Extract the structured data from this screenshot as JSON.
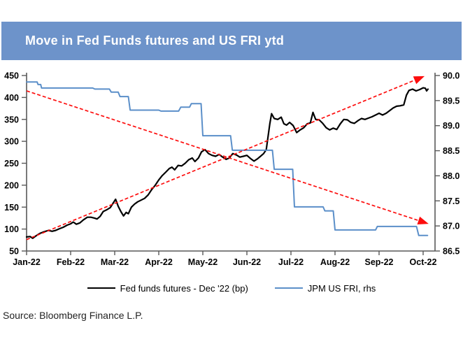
{
  "header": {
    "title": "Move in Fed Funds futures and US FRI ytd"
  },
  "source": {
    "text": "Source: Bloomberg Finance L.P."
  },
  "colors": {
    "header_bg": "#6d93ca",
    "header_text": "#ffffff",
    "fed_line": "#000000",
    "fri_line": "#5b8fc9",
    "trend_line": "#fd0d0d",
    "axis_line": "#595959",
    "tick_text": "#000000"
  },
  "legend": {
    "items": [
      {
        "label": "Fed funds futures - Dec '22 (bp)",
        "color": "#000000"
      },
      {
        "label": "JPM US FRI, rhs",
        "color": "#5b8fc9"
      }
    ]
  },
  "chart_data": {
    "type": "line",
    "title": "Move in Fed Funds futures and US FRI ytd",
    "x_axis": {
      "labels": [
        "Jan-22",
        "Feb-22",
        "Mar-22",
        "Apr-22",
        "May-22",
        "Jun-22",
        "Jul-22",
        "Aug-22",
        "Sep-22",
        "Oct-22"
      ],
      "grid": false
    },
    "y_left": {
      "ticks": [
        450,
        400,
        350,
        300,
        250,
        200,
        150,
        100,
        50
      ],
      "range": [
        50,
        450
      ]
    },
    "y_right": {
      "ticks": [
        "90.0",
        "89.5",
        "89.0",
        "88.5",
        "88.0",
        "87.5",
        "87.0",
        "86.5"
      ],
      "range": [
        86.5,
        90.0
      ]
    },
    "series": [
      {
        "name": "Fed funds futures - Dec '22 (bp)",
        "axis": "left",
        "color": "#000000",
        "points": [
          [
            0.0,
            82
          ],
          [
            0.08,
            83
          ],
          [
            0.14,
            79
          ],
          [
            0.22,
            85
          ],
          [
            0.3,
            90
          ],
          [
            0.4,
            94
          ],
          [
            0.5,
            97
          ],
          [
            0.58,
            95
          ],
          [
            0.66,
            97
          ],
          [
            0.75,
            101
          ],
          [
            0.83,
            104
          ],
          [
            0.92,
            109
          ],
          [
            1.0,
            112
          ],
          [
            1.06,
            116
          ],
          [
            1.13,
            111
          ],
          [
            1.21,
            114
          ],
          [
            1.29,
            121
          ],
          [
            1.38,
            127
          ],
          [
            1.46,
            127
          ],
          [
            1.54,
            125
          ],
          [
            1.6,
            123
          ],
          [
            1.67,
            129
          ],
          [
            1.74,
            140
          ],
          [
            1.82,
            144
          ],
          [
            1.9,
            149
          ],
          [
            1.97,
            160
          ],
          [
            2.02,
            168
          ],
          [
            2.08,
            152
          ],
          [
            2.14,
            140
          ],
          [
            2.2,
            130
          ],
          [
            2.26,
            138
          ],
          [
            2.31,
            135
          ],
          [
            2.38,
            150
          ],
          [
            2.45,
            157
          ],
          [
            2.52,
            162
          ],
          [
            2.6,
            166
          ],
          [
            2.68,
            170
          ],
          [
            2.76,
            178
          ],
          [
            2.84,
            190
          ],
          [
            2.92,
            200
          ],
          [
            3.0,
            212
          ],
          [
            3.08,
            222
          ],
          [
            3.16,
            230
          ],
          [
            3.24,
            238
          ],
          [
            3.3,
            241
          ],
          [
            3.36,
            235
          ],
          [
            3.44,
            245
          ],
          [
            3.52,
            244
          ],
          [
            3.6,
            250
          ],
          [
            3.68,
            258
          ],
          [
            3.76,
            262
          ],
          [
            3.82,
            254
          ],
          [
            3.9,
            262
          ],
          [
            3.97,
            276
          ],
          [
            4.05,
            281
          ],
          [
            4.13,
            272
          ],
          [
            4.21,
            268
          ],
          [
            4.29,
            266
          ],
          [
            4.37,
            270
          ],
          [
            4.45,
            264
          ],
          [
            4.53,
            259
          ],
          [
            4.6,
            262
          ],
          [
            4.68,
            272
          ],
          [
            4.76,
            269
          ],
          [
            4.84,
            264
          ],
          [
            4.92,
            266
          ],
          [
            5.0,
            268
          ],
          [
            5.08,
            261
          ],
          [
            5.16,
            255
          ],
          [
            5.24,
            260
          ],
          [
            5.31,
            266
          ],
          [
            5.38,
            272
          ],
          [
            5.44,
            281
          ],
          [
            5.52,
            340
          ],
          [
            5.56,
            363
          ],
          [
            5.62,
            352
          ],
          [
            5.7,
            350
          ],
          [
            5.78,
            355
          ],
          [
            5.84,
            340
          ],
          [
            5.9,
            337
          ],
          [
            5.97,
            343
          ],
          [
            6.05,
            336
          ],
          [
            6.13,
            320
          ],
          [
            6.21,
            326
          ],
          [
            6.29,
            331
          ],
          [
            6.37,
            340
          ],
          [
            6.44,
            342
          ],
          [
            6.5,
            366
          ],
          [
            6.56,
            350
          ],
          [
            6.64,
            349
          ],
          [
            6.72,
            341
          ],
          [
            6.8,
            331
          ],
          [
            6.88,
            326
          ],
          [
            6.96,
            330
          ],
          [
            7.04,
            327
          ],
          [
            7.12,
            340
          ],
          [
            7.2,
            350
          ],
          [
            7.28,
            349
          ],
          [
            7.36,
            343
          ],
          [
            7.44,
            341
          ],
          [
            7.52,
            347
          ],
          [
            7.6,
            352
          ],
          [
            7.68,
            350
          ],
          [
            7.76,
            353
          ],
          [
            7.84,
            356
          ],
          [
            7.92,
            360
          ],
          [
            8.0,
            364
          ],
          [
            8.08,
            360
          ],
          [
            8.16,
            364
          ],
          [
            8.24,
            370
          ],
          [
            8.32,
            376
          ],
          [
            8.4,
            380
          ],
          [
            8.48,
            381
          ],
          [
            8.56,
            383
          ],
          [
            8.62,
            405
          ],
          [
            8.68,
            416
          ],
          [
            8.76,
            419
          ],
          [
            8.84,
            415
          ],
          [
            8.92,
            418
          ],
          [
            9.0,
            422
          ],
          [
            9.05,
            421
          ],
          [
            9.08,
            415
          ],
          [
            9.11,
            419
          ]
        ]
      },
      {
        "name": "JPM US FRI, rhs",
        "axis": "right",
        "color": "#5b8fc9",
        "points": [
          [
            0.0,
            89.87
          ],
          [
            0.24,
            89.87
          ],
          [
            0.26,
            89.82
          ],
          [
            0.32,
            89.82
          ],
          [
            0.34,
            89.75
          ],
          [
            1.5,
            89.75
          ],
          [
            1.55,
            89.73
          ],
          [
            1.88,
            89.73
          ],
          [
            1.92,
            89.67
          ],
          [
            2.08,
            89.67
          ],
          [
            2.12,
            89.58
          ],
          [
            2.31,
            89.58
          ],
          [
            2.35,
            89.31
          ],
          [
            3.0,
            89.31
          ],
          [
            3.05,
            89.29
          ],
          [
            3.45,
            89.29
          ],
          [
            3.5,
            89.37
          ],
          [
            3.7,
            89.37
          ],
          [
            3.74,
            89.44
          ],
          [
            3.96,
            89.44
          ],
          [
            4.0,
            88.8
          ],
          [
            4.63,
            88.8
          ],
          [
            4.67,
            88.51
          ],
          [
            5.58,
            88.51
          ],
          [
            5.62,
            88.13
          ],
          [
            6.04,
            88.13
          ],
          [
            6.08,
            87.38
          ],
          [
            6.73,
            87.38
          ],
          [
            6.77,
            87.3
          ],
          [
            6.96,
            87.3
          ],
          [
            7.0,
            86.92
          ],
          [
            7.92,
            86.92
          ],
          [
            7.96,
            86.99
          ],
          [
            8.85,
            86.99
          ],
          [
            8.9,
            86.81
          ],
          [
            9.1,
            86.81
          ]
        ]
      }
    ],
    "trend_lines": [
      {
        "name": "downtrend-arrow",
        "axis": "left",
        "color": "#fd0d0d",
        "dashed": true,
        "from": [
          0.0,
          415
        ],
        "to": [
          9.06,
          114
        ]
      },
      {
        "name": "uptrend-arrow",
        "axis": "left",
        "color": "#fd0d0d",
        "dashed": true,
        "from": [
          0.0,
          76
        ],
        "to": [
          8.97,
          446
        ]
      }
    ],
    "legend_position": "bottom",
    "ylabel_left": "",
    "ylabel_right": ""
  }
}
